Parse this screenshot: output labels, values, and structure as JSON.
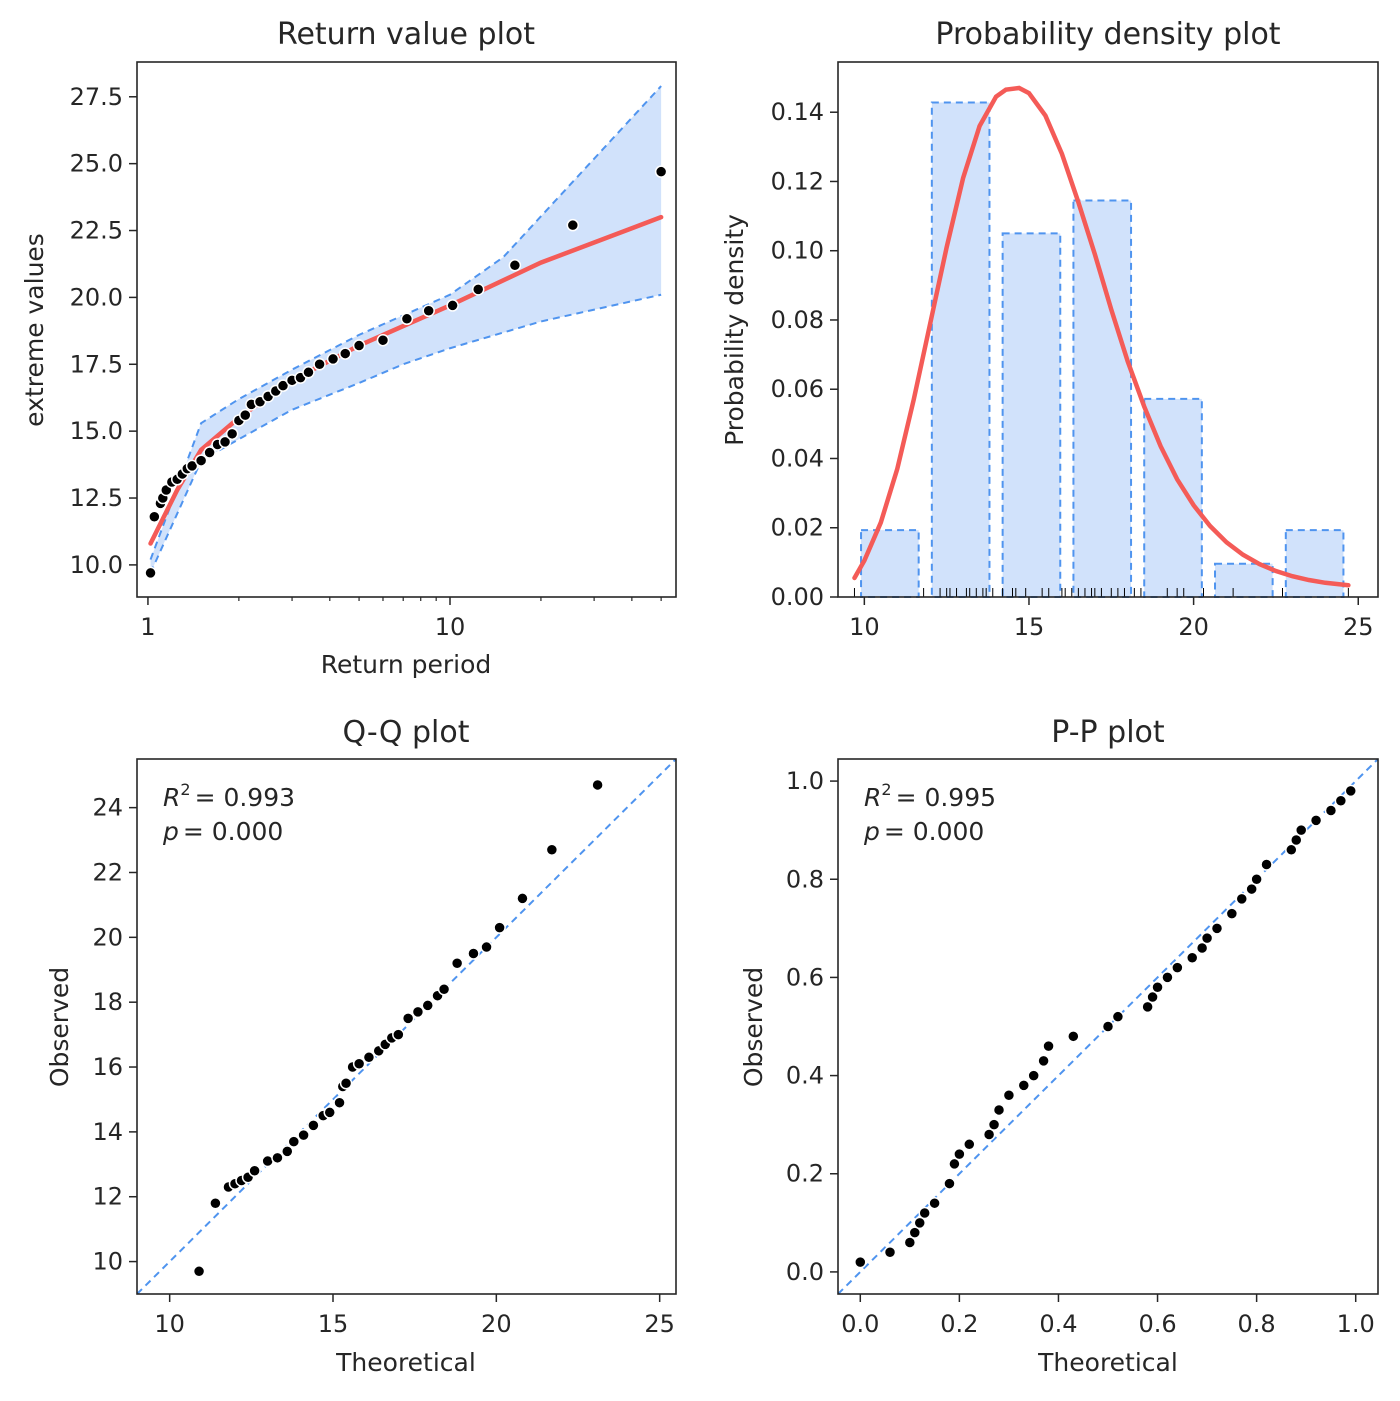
{
  "colors": {
    "fit": "#f45b57",
    "band": "#d1e2fb",
    "band_edge": "#4f94ef",
    "points": "#000000",
    "axis": "#262626"
  },
  "chart_data": [
    {
      "type": "line",
      "id": "return",
      "title": "Return value plot",
      "xlabel": "Return period",
      "ylabel": "extreme values",
      "xscale": "log",
      "xlim": [
        0.92,
        56
      ],
      "ylim": [
        8.8,
        28.8
      ],
      "xticks": [
        1,
        10
      ],
      "xtick_labels": [
        "1",
        "10"
      ],
      "yticks": [
        10,
        12.5,
        15,
        17.5,
        20,
        22.5,
        25,
        27.5
      ],
      "ytick_labels": [
        "10.0",
        "12.5",
        "15.0",
        "17.5",
        "20.0",
        "22.5",
        "25.0",
        "27.5"
      ],
      "fit": {
        "x": [
          1.02,
          1.25,
          1.5,
          2,
          3,
          5,
          10,
          20,
          50
        ],
        "y": [
          10.8,
          12.8,
          14.3,
          15.5,
          16.9,
          18.2,
          19.7,
          21.3,
          23.0
        ]
      },
      "band_upper": {
        "x": [
          1.02,
          1.5,
          2,
          3,
          5,
          10,
          15,
          50
        ],
        "y": [
          10.2,
          15.3,
          16.2,
          17.3,
          18.6,
          20.1,
          21.5,
          27.9
        ]
      },
      "band_lower": {
        "x": [
          1.02,
          1.5,
          2,
          3,
          5,
          7,
          10,
          20,
          50
        ],
        "y": [
          9.7,
          13.9,
          14.7,
          15.8,
          16.8,
          17.5,
          18.1,
          19.1,
          20.1
        ]
      },
      "points": {
        "x": [
          1.02,
          1.05,
          1.1,
          1.12,
          1.15,
          1.2,
          1.25,
          1.3,
          1.35,
          1.4,
          1.5,
          1.6,
          1.7,
          1.8,
          1.9,
          2.0,
          2.1,
          2.2,
          2.35,
          2.5,
          2.65,
          2.8,
          3.0,
          3.2,
          3.4,
          3.7,
          4.1,
          4.5,
          5.0,
          6.0,
          7.2,
          8.5,
          10.2,
          12.4,
          16.4,
          25.5,
          50
        ],
        "y": [
          9.7,
          11.8,
          12.3,
          12.5,
          12.8,
          13.1,
          13.2,
          13.4,
          13.6,
          13.7,
          13.9,
          14.2,
          14.5,
          14.6,
          14.9,
          15.4,
          15.6,
          16.0,
          16.1,
          16.3,
          16.5,
          16.7,
          16.9,
          17.0,
          17.2,
          17.5,
          17.7,
          17.9,
          18.2,
          18.4,
          19.2,
          19.5,
          19.7,
          20.3,
          21.2,
          22.7,
          24.7
        ]
      }
    },
    {
      "type": "bar",
      "id": "pdf",
      "title": "Probability density plot",
      "xlabel": "",
      "ylabel": "Probability density",
      "xlim": [
        9.2,
        25.6
      ],
      "ylim": [
        0,
        0.1545
      ],
      "xticks": [
        10,
        15,
        20,
        25
      ],
      "xtick_labels": [
        "10",
        "15",
        "20",
        "25"
      ],
      "yticks": [
        0,
        0.02,
        0.04,
        0.06,
        0.08,
        0.1,
        0.12,
        0.14
      ],
      "ytick_labels": [
        "0.00",
        "0.02",
        "0.04",
        "0.06",
        "0.08",
        "0.10",
        "0.12",
        "0.14"
      ],
      "bins": [
        [
          9.9,
          11.65
        ],
        [
          12.05,
          13.8
        ],
        [
          14.2,
          15.95
        ],
        [
          16.35,
          18.1
        ],
        [
          18.5,
          20.25
        ],
        [
          20.65,
          22.4
        ],
        [
          22.8,
          24.55
        ]
      ],
      "values": [
        0.0193,
        0.1428,
        0.105,
        0.1145,
        0.0572,
        0.0096,
        0.0193
      ],
      "curve": {
        "x": [
          9.7,
          10,
          10.5,
          11,
          11.5,
          12,
          12.5,
          13,
          13.5,
          14,
          14.3,
          14.7,
          15,
          15.5,
          16,
          16.5,
          17,
          17.5,
          18,
          18.5,
          19,
          19.5,
          20,
          20.5,
          21,
          21.5,
          22,
          22.5,
          23,
          23.5,
          24,
          24.7
        ],
        "y": [
          0.0055,
          0.0105,
          0.0215,
          0.037,
          0.057,
          0.079,
          0.101,
          0.121,
          0.136,
          0.1445,
          0.1465,
          0.147,
          0.1455,
          0.139,
          0.128,
          0.114,
          0.099,
          0.083,
          0.068,
          0.055,
          0.0435,
          0.034,
          0.0265,
          0.0205,
          0.0158,
          0.0122,
          0.0095,
          0.0075,
          0.006,
          0.0049,
          0.0041,
          0.0034
        ]
      },
      "rug": [
        9.7,
        11.8,
        12.3,
        12.5,
        12.6,
        12.8,
        13.1,
        13.2,
        13.4,
        13.6,
        13.7,
        13.9,
        14.2,
        14.5,
        14.6,
        14.9,
        15.4,
        15.6,
        16.0,
        16.1,
        16.3,
        16.5,
        16.7,
        16.9,
        17.0,
        17.2,
        17.5,
        17.7,
        17.9,
        18.2,
        18.4,
        19.2,
        19.5,
        19.7,
        20.3,
        21.2,
        22.7,
        24.7
      ]
    },
    {
      "type": "scatter",
      "id": "qq",
      "title": "Q-Q plot",
      "xlabel": "Theoretical",
      "ylabel": "Observed",
      "annotation": {
        "r2_label": "R",
        "r2_sup": "2",
        "r2_value": "= 0.993",
        "p_label": "p",
        "p_value": "= 0.000"
      },
      "xlim": [
        9.0,
        25.5
      ],
      "ylim": [
        9.0,
        25.5
      ],
      "xticks": [
        10,
        15,
        20,
        25
      ],
      "xtick_labels": [
        "10",
        "15",
        "20",
        "25"
      ],
      "yticks": [
        10,
        12,
        14,
        16,
        18,
        20,
        22,
        24
      ],
      "ytick_labels": [
        "10",
        "12",
        "14",
        "16",
        "18",
        "20",
        "22",
        "24"
      ],
      "reference_line": [
        [
          9.0,
          9.0
        ],
        [
          25.5,
          25.5
        ]
      ],
      "x": [
        10.9,
        11.4,
        11.8,
        12.0,
        12.2,
        12.4,
        12.6,
        13.0,
        13.3,
        13.6,
        13.8,
        14.1,
        14.4,
        14.7,
        14.9,
        15.2,
        15.3,
        15.4,
        15.6,
        15.8,
        16.1,
        16.4,
        16.6,
        16.8,
        17.0,
        17.3,
        17.6,
        17.9,
        18.2,
        18.4,
        18.8,
        19.3,
        19.7,
        20.1,
        20.8,
        21.7,
        23.1
      ],
      "y": [
        9.7,
        11.8,
        12.3,
        12.4,
        12.5,
        12.6,
        12.8,
        13.1,
        13.2,
        13.4,
        13.7,
        13.9,
        14.2,
        14.5,
        14.6,
        14.9,
        15.4,
        15.5,
        16.0,
        16.1,
        16.3,
        16.5,
        16.7,
        16.9,
        17.0,
        17.5,
        17.7,
        17.9,
        18.2,
        18.4,
        19.2,
        19.5,
        19.7,
        20.3,
        21.2,
        22.7,
        24.7
      ]
    },
    {
      "type": "scatter",
      "id": "pp",
      "title": "P-P plot",
      "xlabel": "Theoretical",
      "ylabel": "Observed",
      "annotation": {
        "r2_label": "R",
        "r2_sup": "2",
        "r2_value": "= 0.995",
        "p_label": "p",
        "p_value": "= 0.000"
      },
      "xlim": [
        -0.045,
        1.045
      ],
      "ylim": [
        -0.045,
        1.045
      ],
      "xticks": [
        0,
        0.2,
        0.4,
        0.6,
        0.8,
        1.0
      ],
      "xtick_labels": [
        "0.0",
        "0.2",
        "0.4",
        "0.6",
        "0.8",
        "1.0"
      ],
      "yticks": [
        0,
        0.2,
        0.4,
        0.6,
        0.8,
        1.0
      ],
      "ytick_labels": [
        "0.0",
        "0.2",
        "0.4",
        "0.6",
        "0.8",
        "1.0"
      ],
      "reference_line": [
        [
          -0.045,
          -0.045
        ],
        [
          1.045,
          1.045
        ]
      ],
      "x": [
        0.0,
        0.06,
        0.1,
        0.11,
        0.12,
        0.13,
        0.15,
        0.18,
        0.19,
        0.2,
        0.22,
        0.26,
        0.27,
        0.28,
        0.3,
        0.33,
        0.35,
        0.37,
        0.38,
        0.43,
        0.5,
        0.52,
        0.58,
        0.59,
        0.6,
        0.62,
        0.64,
        0.67,
        0.69,
        0.7,
        0.72,
        0.75,
        0.77,
        0.79,
        0.8,
        0.82,
        0.87,
        0.88,
        0.89,
        0.92,
        0.95,
        0.97,
        0.99
      ],
      "y": [
        0.02,
        0.04,
        0.06,
        0.08,
        0.1,
        0.12,
        0.14,
        0.18,
        0.22,
        0.24,
        0.26,
        0.28,
        0.3,
        0.33,
        0.36,
        0.38,
        0.4,
        0.43,
        0.46,
        0.48,
        0.5,
        0.52,
        0.54,
        0.56,
        0.58,
        0.6,
        0.62,
        0.64,
        0.66,
        0.68,
        0.7,
        0.73,
        0.76,
        0.78,
        0.8,
        0.83,
        0.86,
        0.88,
        0.9,
        0.92,
        0.94,
        0.96,
        0.98
      ]
    }
  ]
}
